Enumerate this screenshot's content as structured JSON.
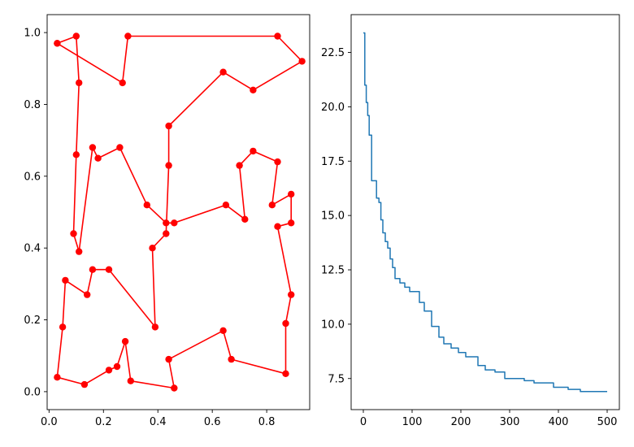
{
  "chart_data": [
    {
      "type": "line",
      "title": "",
      "xlabel": "",
      "ylabel": "",
      "xlim": [
        -0.007,
        0.958
      ],
      "ylim": [
        -0.05,
        1.05
      ],
      "xticks": [
        "0.0",
        "0.2",
        "0.4",
        "0.6",
        "0.8"
      ],
      "yticks": [
        "0.0",
        "0.2",
        "0.4",
        "0.6",
        "0.8",
        "1.0"
      ],
      "grid": false,
      "color": "#ff0000",
      "marker": "circle",
      "points": [
        [
          0.03,
          0.97
        ],
        [
          0.1,
          0.99
        ],
        [
          0.11,
          0.86
        ],
        [
          0.1,
          0.66
        ],
        [
          0.09,
          0.44
        ],
        [
          0.11,
          0.39
        ],
        [
          0.16,
          0.68
        ],
        [
          0.18,
          0.65
        ],
        [
          0.26,
          0.68
        ],
        [
          0.36,
          0.52
        ],
        [
          0.43,
          0.47
        ],
        [
          0.46,
          0.47
        ],
        [
          0.65,
          0.52
        ],
        [
          0.72,
          0.48
        ],
        [
          0.7,
          0.63
        ],
        [
          0.75,
          0.67
        ],
        [
          0.84,
          0.64
        ],
        [
          0.82,
          0.52
        ],
        [
          0.89,
          0.55
        ],
        [
          0.89,
          0.47
        ],
        [
          0.84,
          0.46
        ],
        [
          0.89,
          0.27
        ],
        [
          0.87,
          0.19
        ],
        [
          0.87,
          0.05
        ],
        [
          0.67,
          0.09
        ],
        [
          0.64,
          0.17
        ],
        [
          0.44,
          0.09
        ],
        [
          0.46,
          0.01
        ],
        [
          0.3,
          0.03
        ],
        [
          0.28,
          0.14
        ],
        [
          0.25,
          0.07
        ],
        [
          0.22,
          0.06
        ],
        [
          0.13,
          0.02
        ],
        [
          0.03,
          0.04
        ],
        [
          0.05,
          0.18
        ],
        [
          0.06,
          0.31
        ],
        [
          0.14,
          0.27
        ],
        [
          0.16,
          0.34
        ],
        [
          0.22,
          0.34
        ],
        [
          0.39,
          0.18
        ],
        [
          0.38,
          0.4
        ],
        [
          0.43,
          0.44
        ],
        [
          0.44,
          0.63
        ],
        [
          0.44,
          0.74
        ],
        [
          0.64,
          0.89
        ],
        [
          0.75,
          0.84
        ],
        [
          0.93,
          0.92
        ],
        [
          0.84,
          0.99
        ],
        [
          0.29,
          0.99
        ],
        [
          0.27,
          0.86
        ],
        [
          0.03,
          0.97
        ]
      ]
    },
    {
      "type": "line",
      "title": "",
      "xlabel": "",
      "ylabel": "",
      "xlim": [
        -25,
        525
      ],
      "ylim": [
        6.07,
        24.24
      ],
      "xticks": [
        "0",
        "100",
        "200",
        "300",
        "400",
        "500"
      ],
      "yticks": [
        "7.5",
        "10.0",
        "12.5",
        "15.0",
        "17.5",
        "20.0",
        "22.5"
      ],
      "grid": false,
      "color": "#1f77b4",
      "step": true,
      "points": [
        [
          0,
          23.4
        ],
        [
          3,
          23.4
        ],
        [
          3,
          21.0
        ],
        [
          6,
          21.0
        ],
        [
          6,
          20.2
        ],
        [
          9,
          20.2
        ],
        [
          9,
          19.6
        ],
        [
          12,
          19.6
        ],
        [
          12,
          18.7
        ],
        [
          17,
          18.7
        ],
        [
          17,
          16.6
        ],
        [
          27,
          16.6
        ],
        [
          27,
          15.8
        ],
        [
          32,
          15.8
        ],
        [
          32,
          15.6
        ],
        [
          36,
          15.6
        ],
        [
          36,
          14.8
        ],
        [
          40,
          14.8
        ],
        [
          40,
          14.2
        ],
        [
          45,
          14.2
        ],
        [
          45,
          13.8
        ],
        [
          50,
          13.8
        ],
        [
          50,
          13.5
        ],
        [
          55,
          13.5
        ],
        [
          55,
          13.0
        ],
        [
          60,
          13.0
        ],
        [
          60,
          12.6
        ],
        [
          65,
          12.6
        ],
        [
          65,
          12.1
        ],
        [
          75,
          12.1
        ],
        [
          75,
          11.9
        ],
        [
          85,
          11.9
        ],
        [
          85,
          11.7
        ],
        [
          95,
          11.7
        ],
        [
          95,
          11.5
        ],
        [
          115,
          11.5
        ],
        [
          115,
          11.0
        ],
        [
          125,
          11.0
        ],
        [
          125,
          10.6
        ],
        [
          140,
          10.6
        ],
        [
          140,
          9.9
        ],
        [
          155,
          9.9
        ],
        [
          155,
          9.4
        ],
        [
          165,
          9.4
        ],
        [
          165,
          9.1
        ],
        [
          180,
          9.1
        ],
        [
          180,
          8.9
        ],
        [
          195,
          8.9
        ],
        [
          195,
          8.7
        ],
        [
          210,
          8.7
        ],
        [
          210,
          8.5
        ],
        [
          235,
          8.5
        ],
        [
          235,
          8.1
        ],
        [
          250,
          8.1
        ],
        [
          250,
          7.9
        ],
        [
          270,
          7.9
        ],
        [
          270,
          7.8
        ],
        [
          290,
          7.8
        ],
        [
          290,
          7.5
        ],
        [
          330,
          7.5
        ],
        [
          330,
          7.4
        ],
        [
          350,
          7.4
        ],
        [
          350,
          7.3
        ],
        [
          390,
          7.3
        ],
        [
          390,
          7.1
        ],
        [
          420,
          7.1
        ],
        [
          420,
          7.0
        ],
        [
          445,
          7.0
        ],
        [
          445,
          6.9
        ],
        [
          500,
          6.9
        ]
      ]
    }
  ]
}
